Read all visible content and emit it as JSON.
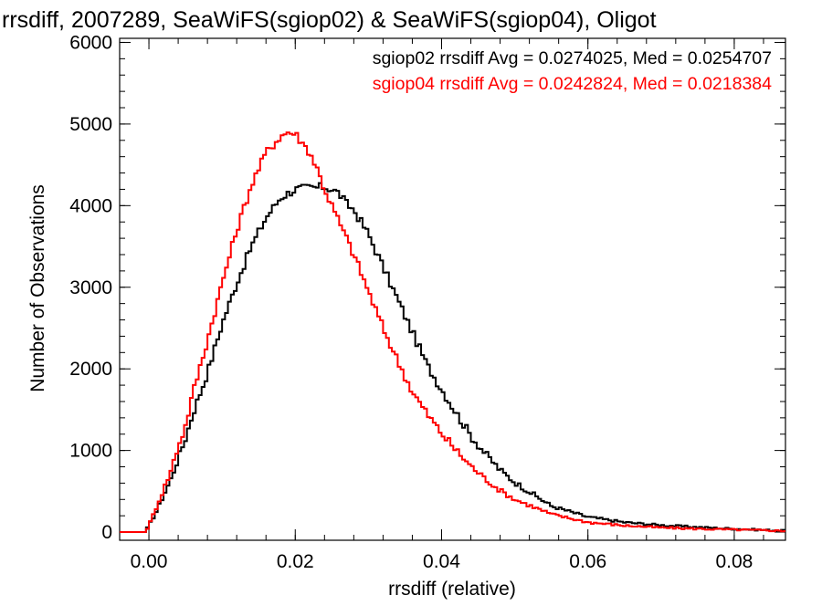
{
  "chart_data": {
    "type": "line",
    "step": true,
    "title": "rrsdiff, 2007289, SeaWiFS(sgiop02) & SeaWiFS(sgiop04), Oligot",
    "xlabel": "rrsdiff (relative)",
    "ylabel": "Number of Observations",
    "xlim": [
      -0.004,
      0.087
    ],
    "ylim": [
      -100,
      6050
    ],
    "xticks": [
      0.0,
      0.02,
      0.04,
      0.06,
      0.08
    ],
    "xtick_labels": [
      "0.00",
      "0.02",
      "0.04",
      "0.06",
      "0.08"
    ],
    "yticks": [
      0,
      1000,
      2000,
      3000,
      4000,
      5000,
      6000
    ],
    "ytick_labels": [
      "0",
      "1000",
      "2000",
      "3000",
      "4000",
      "5000",
      "6000"
    ],
    "grid": false,
    "annotations": [
      {
        "text": "sgiop02 rrsdiff Avg = 0.0274025, Med = 0.0254707",
        "color": "#000000"
      },
      {
        "text": "sgiop04 rrsdiff Avg = 0.0242824, Med = 0.0218384",
        "color": "#ff0000"
      }
    ],
    "series": [
      {
        "color": "#000000",
        "x": [
          -0.004,
          -0.0005,
          0.0,
          0.001,
          0.002,
          0.003,
          0.004,
          0.005,
          0.006,
          0.008,
          0.01,
          0.012,
          0.014,
          0.016,
          0.018,
          0.02,
          0.022,
          0.023,
          0.024,
          0.025,
          0.026,
          0.027,
          0.028,
          0.03,
          0.032,
          0.034,
          0.036,
          0.038,
          0.04,
          0.042,
          0.044,
          0.046,
          0.048,
          0.05,
          0.055,
          0.06,
          0.065,
          0.07,
          0.075,
          0.08,
          0.087
        ],
        "y": [
          0,
          0,
          80,
          250,
          450,
          650,
          900,
          1150,
          1450,
          1950,
          2550,
          3050,
          3500,
          3850,
          4100,
          4200,
          4220,
          4220,
          4230,
          4200,
          4150,
          4020,
          3950,
          3650,
          3250,
          2850,
          2450,
          2050,
          1750,
          1460,
          1180,
          960,
          760,
          610,
          320,
          185,
          120,
          85,
          60,
          40,
          15
        ]
      },
      {
        "color": "#ff0000",
        "x": [
          -0.004,
          -0.0005,
          0.0,
          0.001,
          0.002,
          0.003,
          0.004,
          0.005,
          0.006,
          0.008,
          0.01,
          0.012,
          0.014,
          0.016,
          0.018,
          0.019,
          0.02,
          0.022,
          0.023,
          0.024,
          0.026,
          0.028,
          0.03,
          0.032,
          0.034,
          0.036,
          0.038,
          0.04,
          0.042,
          0.044,
          0.046,
          0.048,
          0.05,
          0.055,
          0.06,
          0.065,
          0.07,
          0.075,
          0.08,
          0.087
        ],
        "y": [
          0,
          0,
          80,
          300,
          520,
          750,
          1050,
          1300,
          1700,
          2350,
          3050,
          3700,
          4250,
          4650,
          4850,
          4900,
          4880,
          4650,
          4450,
          4200,
          3800,
          3400,
          2950,
          2500,
          2100,
          1720,
          1450,
          1210,
          1000,
          810,
          650,
          510,
          400,
          220,
          120,
          80,
          55,
          40,
          30,
          15
        ]
      }
    ]
  }
}
